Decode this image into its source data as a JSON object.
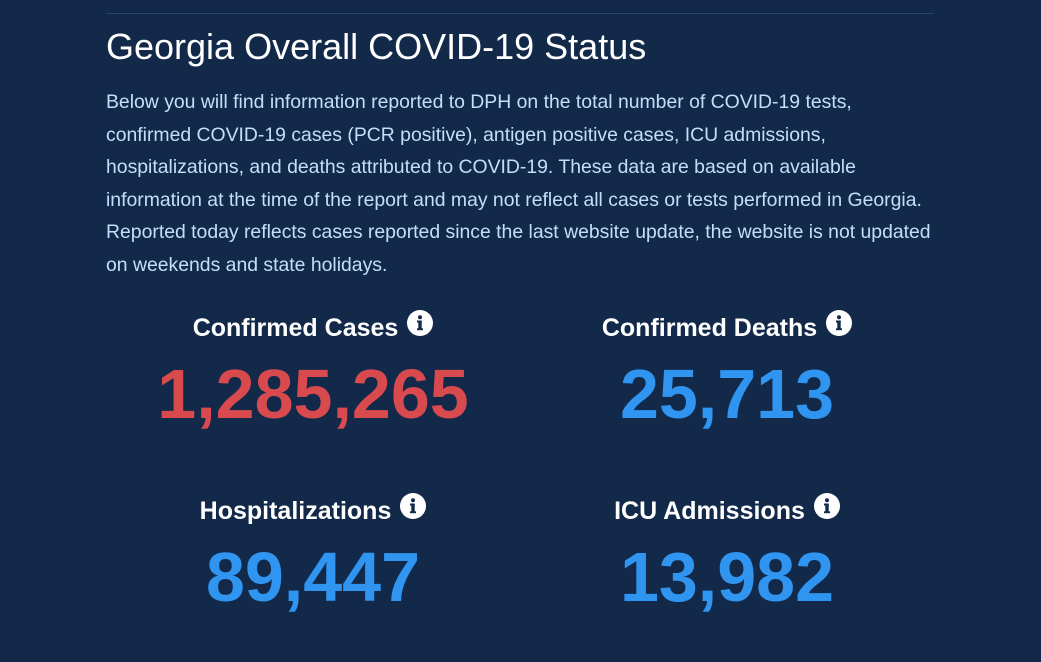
{
  "page": {
    "title": "Georgia Overall COVID-19 Status",
    "description": "Below you will find information reported to DPH on the total number of COVID-19 tests, confirmed COVID-19 cases (PCR positive), antigen positive cases, ICU admissions, hospitalizations, and deaths attributed to COVID-19. These data are based on available information at the time of the report and may not reflect all cases or tests performed in Georgia. Reported today reflects cases reported since the last website update, the website is not updated on weekends and state holidays."
  },
  "stats": {
    "confirmed_cases": {
      "label": "Confirmed Cases",
      "value": "1,285,265",
      "color": "#d94a4f",
      "icon": "info-icon"
    },
    "confirmed_deaths": {
      "label": "Confirmed Deaths",
      "value": "25,713",
      "color": "#3095f0",
      "icon": "info-icon"
    },
    "hospitalizations": {
      "label": "Hospitalizations",
      "value": "89,447",
      "color": "#3095f0",
      "icon": "info-icon"
    },
    "icu_admissions": {
      "label": "ICU Admissions",
      "value": "13,982",
      "color": "#3095f0",
      "icon": "info-icon"
    }
  },
  "colors": {
    "background": "#12294a",
    "description_text": "#bfe0f7",
    "heading_text": "#ffffff"
  }
}
